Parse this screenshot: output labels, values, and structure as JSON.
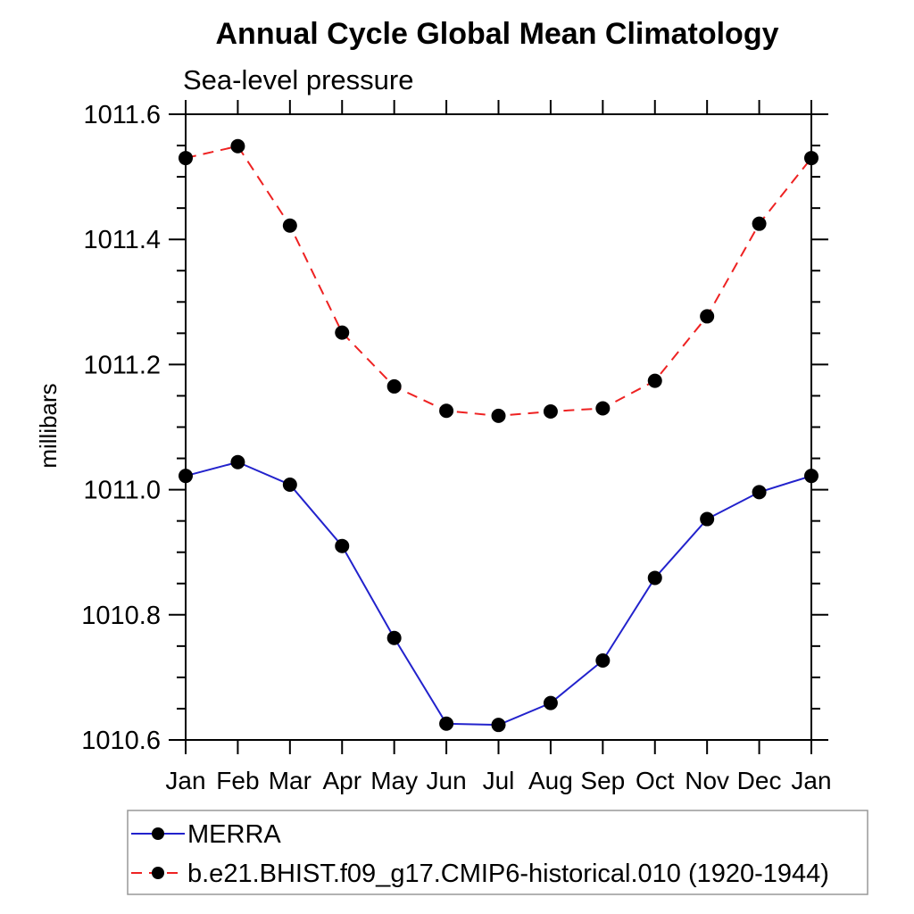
{
  "chart_data": {
    "type": "line",
    "title": "Annual Cycle Global Mean Climatology",
    "subtitle": "Sea-level pressure",
    "ylabel": "millibars",
    "x_categories": [
      "Jan",
      "Feb",
      "Mar",
      "Apr",
      "May",
      "Jun",
      "Jul",
      "Aug",
      "Sep",
      "Oct",
      "Nov",
      "Dec",
      "Jan"
    ],
    "ylim": [
      1010.6,
      1011.6
    ],
    "ytick_major_step": 0.2,
    "ytick_minor_step": 0.05,
    "ytick_labels": [
      "1010.6",
      "1010.8",
      "1011.0",
      "1011.2",
      "1011.4",
      "1011.6"
    ],
    "grid": false,
    "legend_position": "bottom-left",
    "colors": {
      "axis": "#000000",
      "marker": "#000000",
      "legend_border": "#999999"
    },
    "series": [
      {
        "name": "MERRA",
        "color": "#2222cc",
        "style": "solid",
        "marker": "filled-circle",
        "values": [
          1011.022,
          1011.044,
          1011.008,
          1010.91,
          1010.763,
          1010.626,
          1010.624,
          1010.659,
          1010.727,
          1010.859,
          1010.953,
          1010.996,
          1011.022
        ]
      },
      {
        "name": "b.e21.BHIST.f09_g17.CMIP6-historical.010 (1920-1944)",
        "color": "#ee2222",
        "style": "dashed",
        "marker": "filled-circle",
        "values": [
          1011.53,
          1011.549,
          1011.422,
          1011.251,
          1011.165,
          1011.126,
          1011.118,
          1011.125,
          1011.13,
          1011.174,
          1011.277,
          1011.425,
          1011.53
        ]
      }
    ]
  }
}
